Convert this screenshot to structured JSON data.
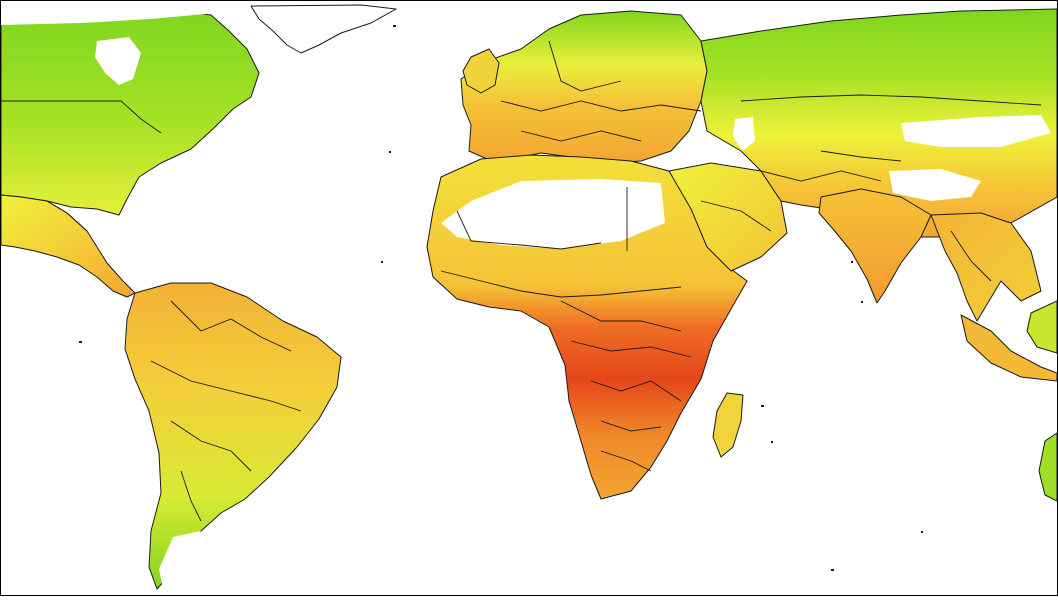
{
  "map": {
    "projection": "equirectangular",
    "coverage": "world",
    "background": "#ffffff",
    "border_color": "#1a1a1a",
    "no_data_color": "#ffffff",
    "color_scale": [
      "#7fd61f",
      "#b9e82a",
      "#eef23a",
      "#f7d83a",
      "#f3a533",
      "#ef6d25",
      "#e33b16"
    ]
  }
}
